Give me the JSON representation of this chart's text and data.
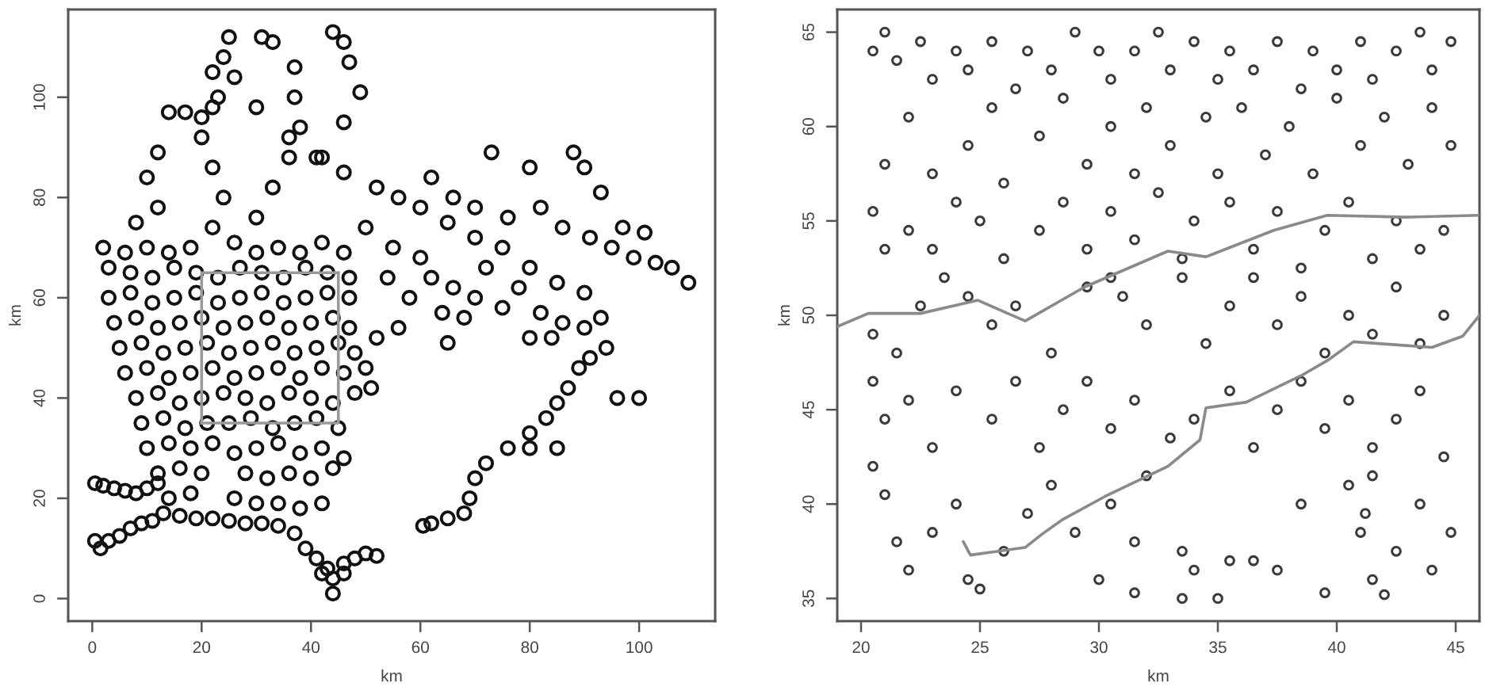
{
  "chart_data": [
    {
      "type": "scatter",
      "xlabel": "km",
      "ylabel": "km",
      "xlim": [
        -4.4,
        113.9
      ],
      "ylim": [
        -4.5,
        117.5
      ],
      "xticks": [
        0,
        20,
        40,
        60,
        80,
        100
      ],
      "yticks": [
        0,
        20,
        40,
        60,
        80,
        100
      ],
      "series": [
        {
          "color": "#111111",
          "marker": "circle",
          "x": [
            0.5,
            2,
            4,
            6,
            8,
            10,
            12,
            0.5,
            1.5,
            3,
            5,
            7,
            9,
            11,
            13,
            16,
            19,
            22,
            25,
            28,
            31,
            34,
            37,
            39,
            41,
            43,
            44,
            44,
            42,
            46,
            48,
            50,
            52,
            46,
            14,
            18,
            26,
            30,
            34,
            38,
            42,
            12,
            16,
            20,
            28,
            32,
            36,
            40,
            44,
            10,
            14,
            18,
            22,
            26,
            30,
            34,
            38,
            42,
            46,
            9,
            13,
            17,
            21,
            25,
            29,
            33,
            37,
            41,
            45,
            8,
            12,
            16,
            20,
            24,
            28,
            32,
            36,
            40,
            44,
            48,
            51,
            6,
            10,
            14,
            18,
            22,
            26,
            30,
            34,
            38,
            42,
            46,
            50,
            5,
            9,
            13,
            17,
            21,
            25,
            29,
            33,
            37,
            41,
            45,
            48,
            4,
            8,
            12,
            16,
            20,
            24,
            28,
            32,
            36,
            40,
            44,
            47,
            3,
            7,
            11,
            15,
            19,
            23,
            27,
            31,
            35,
            39,
            43,
            47,
            3,
            7,
            11,
            15,
            19,
            23,
            27,
            31,
            35,
            39,
            43,
            47,
            2,
            6,
            10,
            14,
            18,
            26,
            30,
            34,
            38,
            42,
            46,
            8,
            12,
            10,
            12,
            14,
            17,
            20,
            22,
            22,
            24,
            22,
            20,
            23,
            22,
            24,
            25,
            31,
            33,
            30,
            33,
            36,
            38,
            37,
            37,
            44,
            46,
            47,
            49,
            46,
            42,
            26,
            30,
            36,
            41,
            46,
            52,
            56,
            60,
            65,
            70,
            75,
            80,
            85,
            90,
            50,
            55,
            60,
            54,
            58,
            62,
            66,
            64,
            70,
            72,
            68,
            75,
            78,
            82,
            86,
            90,
            93,
            80,
            84,
            94,
            73,
            80,
            62,
            66,
            70,
            76,
            82,
            86,
            88,
            90,
            93,
            91,
            95,
            97,
            101,
            103,
            106,
            109,
            99,
            91,
            89,
            87,
            85,
            83,
            80,
            80,
            85,
            76,
            72,
            70,
            69,
            68,
            65,
            62,
            60.5,
            96,
            100,
            65,
            56,
            52
          ],
          "values": [
            23,
            22.5,
            22,
            21.5,
            21,
            22,
            23,
            11.5,
            10,
            11.5,
            12.5,
            14,
            15,
            15.5,
            17,
            16.5,
            16,
            16,
            15.5,
            15,
            15,
            14.5,
            13,
            10,
            8,
            6,
            4,
            1,
            5,
            7,
            8,
            9,
            8.5,
            5,
            20,
            21,
            20,
            19,
            19,
            18,
            19,
            25,
            26,
            25,
            25,
            24,
            25,
            24,
            26,
            30,
            31,
            30,
            31,
            29,
            30,
            31,
            29,
            30,
            28,
            35,
            36,
            34,
            35,
            35,
            36,
            34,
            35,
            36,
            34,
            40,
            41,
            39,
            40,
            41,
            40,
            39,
            41,
            40,
            39,
            41,
            42,
            45,
            46,
            44,
            45,
            46,
            44,
            45,
            46,
            44,
            46,
            45,
            46,
            50,
            51,
            49,
            50,
            51,
            49,
            50,
            51,
            49,
            50,
            51,
            49,
            55,
            56,
            54,
            55,
            56,
            54,
            55,
            56,
            54,
            55,
            56,
            54,
            60,
            61,
            59,
            60,
            61,
            59,
            60,
            61,
            59,
            60,
            61,
            60,
            66,
            65,
            64,
            66,
            65,
            64,
            66,
            65,
            64,
            66,
            65,
            64,
            70,
            69,
            70,
            69,
            70,
            71,
            69,
            70,
            69,
            71,
            69,
            75,
            78,
            84,
            89,
            97,
            97,
            96,
            98,
            74,
            80,
            86,
            92,
            100,
            105,
            108,
            112,
            112,
            111,
            76,
            82,
            88,
            94,
            100,
            106,
            113,
            111,
            107,
            101,
            95,
            88,
            104,
            98,
            92,
            88,
            85,
            82,
            80,
            78,
            75,
            72,
            70,
            66,
            63,
            61,
            74,
            70,
            68,
            64,
            60,
            64,
            62,
            57,
            60,
            66,
            56,
            58,
            62,
            57,
            55,
            54,
            56,
            52,
            52,
            50,
            89,
            86,
            84,
            80,
            78,
            76,
            78,
            74,
            89,
            86,
            81,
            72,
            70,
            74,
            73,
            67,
            66,
            63,
            68,
            48,
            46,
            42,
            39,
            36,
            33,
            30,
            30,
            30,
            27,
            24,
            20,
            17,
            16,
            15,
            14.5,
            40,
            40,
            51,
            54,
            52
          ]
        },
        {
          "type": "line",
          "color": "#9a9a9a",
          "line_style": "solid",
          "x": [
            20,
            45,
            45
          ],
          "values": [
            35,
            35,
            65
          ]
        },
        {
          "type": "line",
          "color": "#9a9a9a",
          "line_style": "solid",
          "x": [
            45,
            20,
            20
          ],
          "values": [
            65,
            65,
            35
          ]
        }
      ]
    },
    {
      "type": "scatter",
      "xlabel": "km",
      "ylabel": "km",
      "xlim": [
        19,
        46
      ],
      "ylim": [
        33.8,
        66.2
      ],
      "xticks": [
        20,
        25,
        30,
        35,
        40,
        45
      ],
      "yticks": [
        35,
        40,
        45,
        50,
        55,
        60,
        65
      ],
      "series": [
        {
          "color": "#3a3a3a",
          "marker": "circle",
          "x": [
            20.5,
            21,
            21.5,
            22.5,
            23,
            24,
            24.5,
            25.5,
            26.5,
            27,
            28,
            29,
            30,
            30.5,
            31.5,
            32.5,
            33,
            34,
            35,
            35.5,
            36.5,
            37.5,
            38.5,
            39,
            40,
            41,
            41.5,
            42.5,
            43.5,
            44,
            44.8,
            21,
            22,
            23,
            24.5,
            25.5,
            26,
            27.5,
            28.5,
            29.5,
            30.5,
            31.5,
            32,
            33,
            34.5,
            35,
            36,
            37,
            38,
            39,
            40,
            41,
            42,
            43,
            44,
            44.8,
            20.5,
            21,
            22,
            23,
            24,
            25,
            26,
            27.5,
            28.5,
            29.5,
            30.5,
            31.5,
            32.5,
            33.5,
            34,
            35.5,
            36.5,
            37.5,
            38.5,
            39.5,
            40.5,
            41.5,
            42.5,
            43.5,
            44.5,
            20.5,
            21.5,
            22.5,
            23.5,
            24.5,
            25.5,
            26.5,
            28,
            29.5,
            30.5,
            31,
            32,
            33.5,
            34.5,
            35.5,
            36.5,
            37.5,
            38.5,
            39.5,
            40.5,
            41.5,
            42.5,
            43.5,
            44.5,
            20.5,
            21,
            22,
            23,
            24,
            25.5,
            26.5,
            27.5,
            28.5,
            29.5,
            30.5,
            31.5,
            33,
            34,
            35.5,
            36.5,
            37.5,
            38.5,
            39.5,
            40.5,
            41.5,
            42.5,
            43.5,
            44.5,
            20.5,
            21,
            21.5,
            22,
            23,
            24,
            24.5,
            25,
            26,
            27,
            28,
            29,
            30,
            30.5,
            31.5,
            32,
            33.5,
            34,
            35,
            35.5,
            36.5,
            37.5,
            38.5,
            39.5,
            40.5,
            41,
            41.5,
            42,
            42.5,
            43.5,
            44,
            44.8,
            33.5,
            31.5,
            41.2,
            41.5
          ],
          "values": [
            64,
            65,
            63.5,
            64.5,
            62.5,
            64,
            63,
            64.5,
            62,
            64,
            63,
            65,
            64,
            62.5,
            64,
            65,
            63,
            64.5,
            62.5,
            64,
            63,
            64.5,
            62,
            64,
            63,
            64.5,
            62.5,
            64,
            65,
            63,
            64.5,
            58,
            60.5,
            57.5,
            59,
            61,
            57,
            59.5,
            61.5,
            58,
            60,
            57.5,
            61,
            59,
            60.5,
            57.5,
            61,
            58.5,
            60,
            57.5,
            61.5,
            59,
            60.5,
            58,
            61,
            59,
            55.5,
            53.5,
            54.5,
            53.5,
            56,
            55,
            53,
            54.5,
            56,
            53.5,
            55.5,
            54,
            56.5,
            53,
            55,
            56,
            53.5,
            55.5,
            52.5,
            54.5,
            56,
            53,
            55,
            53.5,
            54.5,
            49,
            48,
            50.5,
            52,
            51,
            49.5,
            50.5,
            48,
            51.5,
            52,
            51,
            49.5,
            52,
            48.5,
            50.5,
            52,
            49.5,
            51,
            48,
            50,
            49,
            51.5,
            48.5,
            50,
            46.5,
            44.5,
            45.5,
            43,
            46,
            44.5,
            46.5,
            43,
            45,
            46.5,
            44,
            45.5,
            43.5,
            44.5,
            46,
            43,
            45,
            46.5,
            44,
            45.5,
            43,
            44.5,
            46,
            42.5,
            42,
            40.5,
            38,
            36.5,
            38.5,
            40,
            36,
            35.5,
            37.5,
            39.5,
            41,
            38.5,
            36,
            40,
            38,
            41.5,
            37.5,
            36.5,
            35,
            37,
            37,
            36.5,
            40,
            35.3,
            41,
            38.5,
            36,
            35.2,
            37.5,
            40,
            36.5,
            38.5,
            35,
            35.3,
            39.5,
            41.5
          ]
        },
        {
          "type": "line",
          "color": "#8a8a8a",
          "line_style": "solid",
          "x": [
            19,
            20.3,
            22.5,
            24.9,
            26.9,
            29.4,
            32.9,
            34.5,
            37.35,
            39.6,
            42.9,
            46
          ],
          "values": [
            49.4,
            50.1,
            50.1,
            50.8,
            49.7,
            51.5,
            53.4,
            53.1,
            54.5,
            55.3,
            55.2,
            55.3
          ]
        },
        {
          "type": "line",
          "color": "#8a8a8a",
          "line_style": "solid",
          "x": [
            24.3,
            24.6,
            26.9,
            27.6,
            28.5,
            30.25,
            32.9,
            34.25,
            34.5,
            36.2,
            38.5,
            39.6,
            40.7,
            44,
            45.3,
            46
          ],
          "values": [
            38.0,
            37.3,
            37.7,
            38.4,
            39.2,
            40.4,
            42.0,
            43.4,
            45.1,
            45.4,
            46.8,
            47.6,
            48.6,
            48.3,
            48.9,
            50.0
          ]
        }
      ]
    }
  ]
}
